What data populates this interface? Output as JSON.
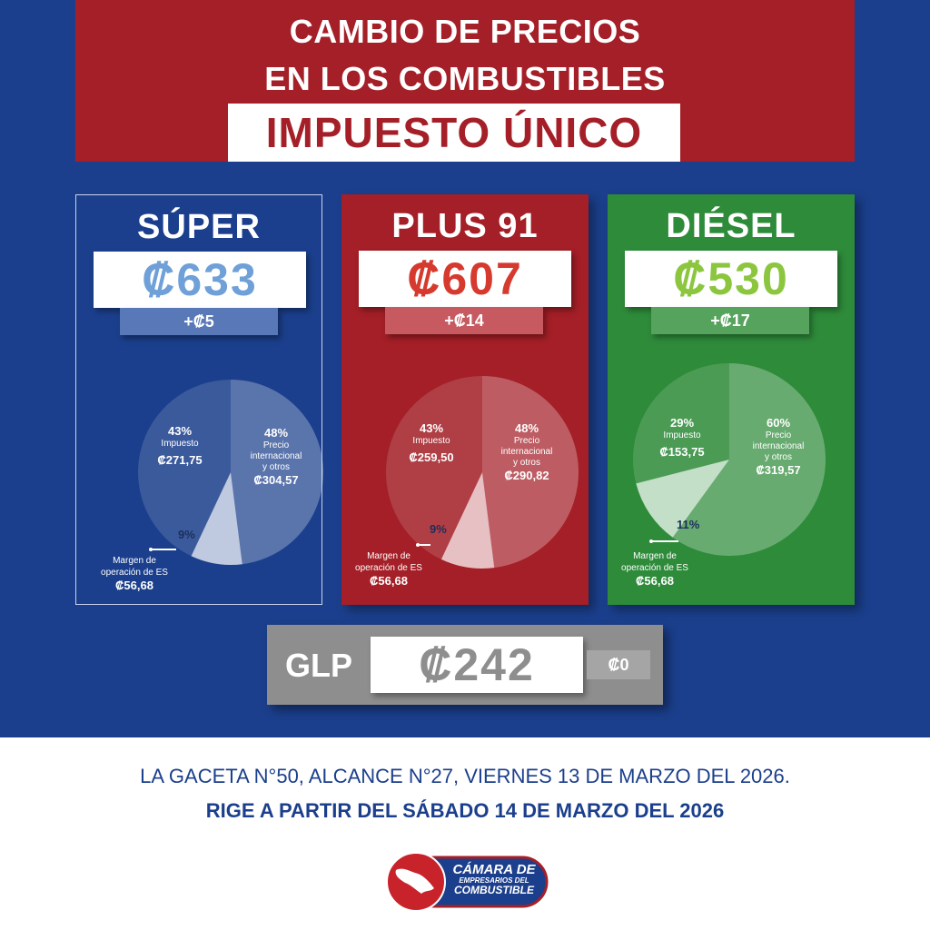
{
  "header": {
    "line1": "CAMBIO DE PRECIOS",
    "line2": "EN LOS COMBUSTIBLES",
    "highlight": "IMPUESTO ÚNICO"
  },
  "colors": {
    "background": "#1b3f8c",
    "banner": "#a41f27",
    "super": "#1b3f8c",
    "plus": "#a41f27",
    "diesel": "#2e8b3a",
    "glp": "#8e8e8e",
    "super_price": "#6fa0d8",
    "plus_price": "#d63a2f",
    "diesel_price": "#8cc63f"
  },
  "fuels": {
    "super": {
      "name": "SÚPER",
      "price": "₡633",
      "change": "+₡5",
      "impuesto_pct": "43%",
      "impuesto_label": "Impuesto",
      "impuesto_amt": "₡271,75",
      "precio_pct": "48%",
      "precio_label_1": "Precio",
      "precio_label_2": "internacional",
      "precio_label_3": "y otros",
      "precio_amt": "₡304,57",
      "margen_pct": "9%",
      "margen_label_1": "Margen de",
      "margen_label_2": "operación de ES",
      "margen_amt": "₡56,68"
    },
    "plus": {
      "name": "PLUS 91",
      "price": "₡607",
      "change": "+₡14",
      "impuesto_pct": "43%",
      "impuesto_label": "Impuesto",
      "impuesto_amt": "₡259,50",
      "precio_pct": "48%",
      "precio_label_1": "Precio",
      "precio_label_2": "internacional",
      "precio_label_3": "y otros",
      "precio_amt": "₡290,82",
      "margen_pct": "9%",
      "margen_label_1": "Margen de",
      "margen_label_2": "operación de ES",
      "margen_amt": "₡56,68"
    },
    "diesel": {
      "name": "DIÉSEL",
      "price": "₡530",
      "change": "+₡17",
      "impuesto_pct": "29%",
      "impuesto_label": "Impuesto",
      "impuesto_amt": "₡153,75",
      "precio_pct": "60%",
      "precio_label_1": "Precio",
      "precio_label_2": "internacional",
      "precio_label_3": "y otros",
      "precio_amt": "₡319,57",
      "margen_pct": "11%",
      "margen_label_1": "Margen de",
      "margen_label_2": "operación de ES",
      "margen_amt": "₡56,68"
    }
  },
  "glp": {
    "name": "GLP",
    "price": "₡242",
    "change": "₡0"
  },
  "footer": {
    "line1": "LA GACETA N°50, ALCANCE N°27, VIERNES 13 DE MARZO DEL 2026.",
    "line2": "RIGE A PARTIR DEL SÁBADO 14 DE MARZO DEL 2026"
  },
  "logo": {
    "line1": "CÁMARA DE",
    "line2": "EMPRESARIOS DEL",
    "line3": "COMBUSTIBLE"
  },
  "chart_data": [
    {
      "type": "pie",
      "title": "SÚPER",
      "categories": [
        "Precio internacional y otros",
        "Margen de operación de ES",
        "Impuesto"
      ],
      "values": [
        48,
        9,
        43
      ],
      "amounts": [
        "₡304,57",
        "₡56,68",
        "₡271,75"
      ]
    },
    {
      "type": "pie",
      "title": "PLUS 91",
      "categories": [
        "Precio internacional y otros",
        "Margen de operación de ES",
        "Impuesto"
      ],
      "values": [
        48,
        9,
        43
      ],
      "amounts": [
        "₡290,82",
        "₡56,68",
        "₡259,50"
      ]
    },
    {
      "type": "pie",
      "title": "DIÉSEL",
      "categories": [
        "Precio internacional y otros",
        "Margen de operación de ES",
        "Impuesto"
      ],
      "values": [
        60,
        11,
        29
      ],
      "amounts": [
        "₡319,57",
        "₡56,68",
        "₡153,75"
      ]
    }
  ]
}
